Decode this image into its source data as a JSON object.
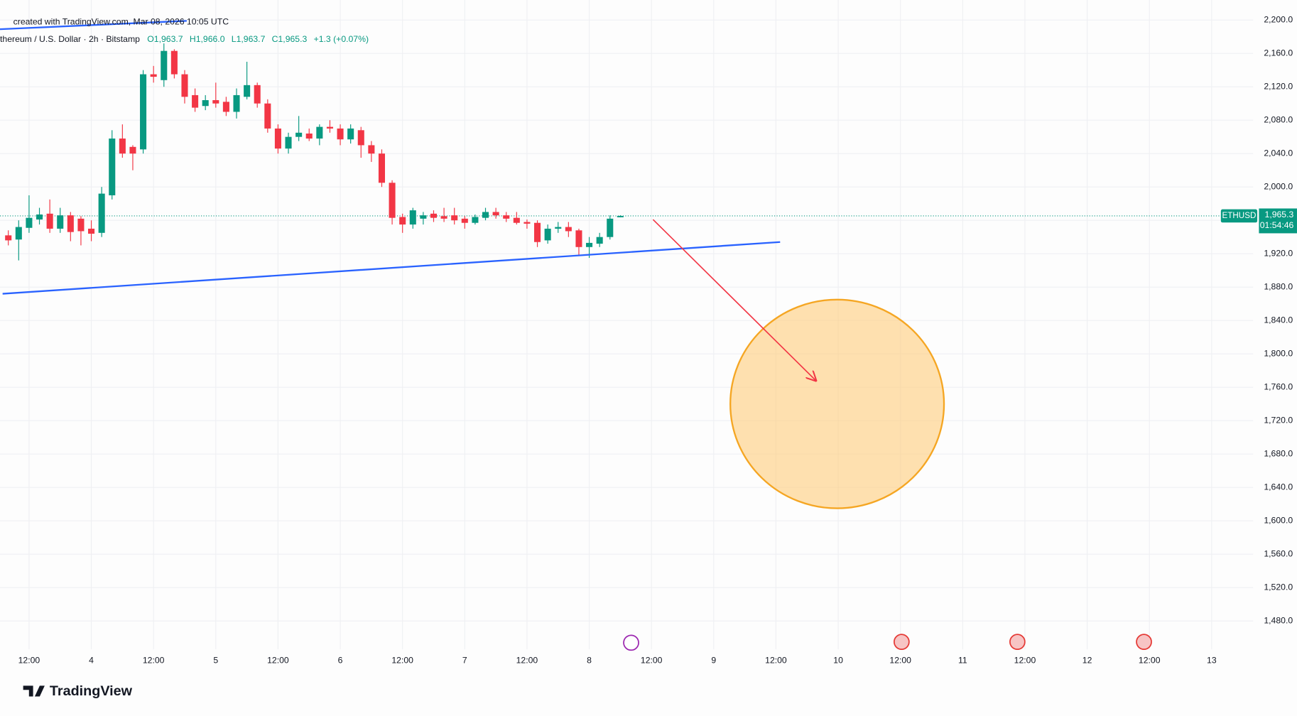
{
  "chart_data": {
    "type": "candlestick",
    "watermark": "created with TradingView.com, Mar 08, 2026 10:05 UTC",
    "symbol": "thereum / U.S. Dollar · 2h · Bitstamp",
    "ohlc_header": [
      "O1,963.7",
      "H1,966.0",
      "L1,963.7",
      "C1,965.3",
      "+1.3 (+0.07%)"
    ],
    "x": [
      8,
      10,
      12,
      14,
      16,
      18,
      20,
      22,
      24,
      26,
      28,
      30,
      32,
      34,
      36,
      38,
      40,
      42,
      44,
      46,
      48,
      50,
      52,
      54,
      56,
      58,
      60,
      62,
      64,
      66,
      68,
      70,
      72,
      74,
      76,
      78,
      80,
      82,
      84,
      86,
      88,
      90,
      92,
      94,
      96,
      98,
      100,
      102,
      104,
      106,
      108,
      110,
      112,
      114,
      116,
      118,
      120,
      122,
      124,
      126
    ],
    "open": [
      1942,
      1937,
      1951,
      1961,
      1968,
      1950,
      1966,
      1962,
      1950,
      1945,
      1990,
      2058,
      2048,
      2045,
      2135,
      2128,
      2163,
      2135,
      2110,
      2097,
      2104,
      2102,
      2090,
      2108,
      2122,
      2100,
      2070,
      2046,
      2060,
      2064,
      2058,
      2072,
      2070,
      2057,
      2068,
      2050,
      2040,
      2005,
      1964,
      1955,
      1962,
      1968,
      1965,
      1966,
      1962,
      1957,
      1963,
      1970,
      1966,
      1963,
      1958,
      1957,
      1936,
      1950,
      1952,
      1948,
      1928,
      1932,
      1940,
      1963.7
    ],
    "high": [
      1948,
      1960,
      1990,
      1975,
      1985,
      1975,
      1970,
      1965,
      1960,
      2000,
      2068,
      2075,
      2050,
      2140,
      2145,
      2172,
      2165,
      2140,
      2118,
      2110,
      2125,
      2108,
      2118,
      2150,
      2125,
      2105,
      2075,
      2065,
      2085,
      2070,
      2075,
      2080,
      2075,
      2075,
      2072,
      2055,
      2045,
      2008,
      1968,
      1975,
      1970,
      1972,
      1975,
      1975,
      1965,
      1967,
      1975,
      1975,
      1970,
      1970,
      1961,
      1960,
      1955,
      1958,
      1958,
      1950,
      1940,
      1945,
      1966,
      1966.0
    ],
    "low": [
      1930,
      1912,
      1945,
      1955,
      1945,
      1945,
      1935,
      1930,
      1935,
      1940,
      1985,
      2035,
      2020,
      2040,
      2125,
      2120,
      2130,
      2100,
      2090,
      2092,
      2095,
      2085,
      2082,
      2105,
      2095,
      2065,
      2040,
      2040,
      2055,
      2055,
      2050,
      2065,
      2050,
      2052,
      2035,
      2030,
      2000,
      1955,
      1945,
      1950,
      1955,
      1958,
      1958,
      1955,
      1950,
      1955,
      1960,
      1962,
      1958,
      1955,
      1950,
      1928,
      1932,
      1945,
      1940,
      1918,
      1915,
      1928,
      1937,
      1963.7
    ],
    "close": [
      1936,
      1952,
      1963,
      1967,
      1950,
      1966,
      1946,
      1947,
      1944,
      1992,
      2058,
      2040,
      2040,
      2135,
      2132,
      2163,
      2135,
      2108,
      2095,
      2104,
      2100,
      2090,
      2110,
      2122,
      2100,
      2070,
      2046,
      2060,
      2065,
      2058,
      2072,
      2070,
      2057,
      2070,
      2050,
      2040,
      2005,
      1963,
      1955,
      1972,
      1966,
      1963,
      1962,
      1960,
      1957,
      1964,
      1970,
      1966,
      1962,
      1957,
      1956,
      1934,
      1950,
      1952,
      1947,
      1928,
      1933,
      1940,
      1962,
      1965.3
    ],
    "up_color": "#089981",
    "down_color": "#f23645",
    "xlim": [
      6.4,
      248
    ],
    "xticks": [
      {
        "value": 12,
        "label": "12:00"
      },
      {
        "value": 24,
        "label": "4"
      },
      {
        "value": 36,
        "label": "12:00"
      },
      {
        "value": 48,
        "label": "5"
      },
      {
        "value": 60,
        "label": "12:00"
      },
      {
        "value": 72,
        "label": "6"
      },
      {
        "value": 84,
        "label": "12:00"
      },
      {
        "value": 96,
        "label": "7"
      },
      {
        "value": 108,
        "label": "12:00"
      },
      {
        "value": 120,
        "label": "8"
      },
      {
        "value": 132,
        "label": "12:00"
      },
      {
        "value": 144,
        "label": "9"
      },
      {
        "value": 156,
        "label": "12:00"
      },
      {
        "value": 168,
        "label": "10"
      },
      {
        "value": 180,
        "label": "12:00"
      },
      {
        "value": 192,
        "label": "11"
      },
      {
        "value": 204,
        "label": "12:00"
      },
      {
        "value": 216,
        "label": "12"
      },
      {
        "value": 228,
        "label": "12:00"
      },
      {
        "value": 240,
        "label": "13"
      }
    ],
    "ylim": [
      1446,
      2224
    ],
    "yticks": [
      {
        "value": 2200,
        "label": "2,200.0"
      },
      {
        "value": 2160,
        "label": "2,160.0"
      },
      {
        "value": 2120,
        "label": "2,120.0"
      },
      {
        "value": 2080,
        "label": "2,080.0"
      },
      {
        "value": 2040,
        "label": "2,040.0"
      },
      {
        "value": 2000,
        "label": "2,000.0"
      },
      {
        "value": 1960,
        "label": "1,960.0"
      },
      {
        "value": 1920,
        "label": "1,920.0"
      },
      {
        "value": 1880,
        "label": "1,880.0"
      },
      {
        "value": 1840,
        "label": "1,840.0"
      },
      {
        "value": 1800,
        "label": "1,800.0"
      },
      {
        "value": 1760,
        "label": "1,760.0"
      },
      {
        "value": 1720,
        "label": "1,720.0"
      },
      {
        "value": 1680,
        "label": "1,680.0"
      },
      {
        "value": 1640,
        "label": "1,640.0"
      },
      {
        "value": 1600,
        "label": "1,600.0"
      },
      {
        "value": 1560,
        "label": "1,560.0"
      },
      {
        "value": 1520,
        "label": "1,520.0"
      },
      {
        "value": 1480,
        "label": "1,480.0"
      }
    ],
    "grid": true,
    "last_price": {
      "value": 1965.3,
      "label": "1,965.3",
      "symbol": "ETHUSD",
      "countdown": "01:54:46",
      "color": "#089981"
    },
    "trendlines": [
      {
        "color": "#2962ff",
        "x": [
          6.9,
          156.8
        ],
        "y": [
          1872,
          1934
        ]
      },
      {
        "color": "#2962ff",
        "x": [
          6.4,
          42.4
        ],
        "y": [
          2189,
          2199
        ]
      }
    ],
    "arrow": {
      "color": "#f23645",
      "x": [
        132.3,
        163.7
      ],
      "y": [
        1961,
        1768
      ]
    },
    "circle": {
      "stroke": "#f5a623",
      "fill": "#ffc870",
      "x": 167.8,
      "y": 1740,
      "rx": 20.6,
      "ry": 125
    },
    "brand": "TradingView"
  }
}
